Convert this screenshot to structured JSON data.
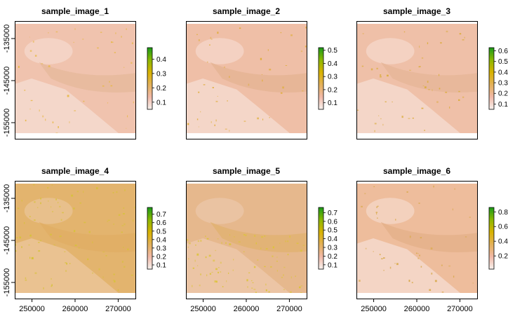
{
  "chart_data": [
    {
      "type": "heatmap",
      "title": "sample_image_1",
      "legend_ticks": [
        "0.1",
        "0.2",
        "0.3",
        "0.4"
      ],
      "legend_range": [
        0.05,
        0.48
      ],
      "y_ticks": [
        "-135000",
        "-145000",
        "-155000"
      ],
      "x_ticks": [],
      "fill": "#f0c3ae",
      "tint": "#e3b796",
      "speckle": "#e7b94a"
    },
    {
      "type": "heatmap",
      "title": "sample_image_2",
      "legend_ticks": [
        "0.1",
        "0.2",
        "0.3",
        "0.4",
        "0.5"
      ],
      "legend_range": [
        0.05,
        0.52
      ],
      "y_ticks": [],
      "x_ticks": [],
      "fill": "#efbfa7",
      "tint": "#e2b08f",
      "speckle": "#dfae3c"
    },
    {
      "type": "heatmap",
      "title": "sample_image_3",
      "legend_ticks": [
        "0.1",
        "0.2",
        "0.3",
        "0.4",
        "0.5",
        "0.6"
      ],
      "legend_range": [
        0.05,
        0.63
      ],
      "y_ticks": [],
      "x_ticks": [],
      "fill": "#efc0a8",
      "tint": "#e4b393",
      "speckle": "#dcae44"
    },
    {
      "type": "heatmap",
      "title": "sample_image_4",
      "legend_ticks": [
        "0.1",
        "0.2",
        "0.3",
        "0.4",
        "0.5",
        "0.6",
        "0.7"
      ],
      "legend_range": [
        0.05,
        0.78
      ],
      "y_ticks": [
        "-135000",
        "-145000",
        "-155000"
      ],
      "x_ticks": [
        "250000",
        "260000",
        "270000"
      ],
      "fill": "#e3b46e",
      "tint": "#e0ac63",
      "speckle": "#d7c23a"
    },
    {
      "type": "heatmap",
      "title": "sample_image_5",
      "legend_ticks": [
        "0.1",
        "0.2",
        "0.3",
        "0.4",
        "0.5",
        "0.6",
        "0.7"
      ],
      "legend_range": [
        0.05,
        0.76
      ],
      "y_ticks": [],
      "x_ticks": [
        "250000",
        "260000",
        "270000"
      ],
      "fill": "#e6b88d",
      "tint": "#e0b06a",
      "speckle": "#dcc43a"
    },
    {
      "type": "heatmap",
      "title": "sample_image_6",
      "legend_ticks": [
        "0.2",
        "0.4",
        "0.6",
        "0.8"
      ],
      "legend_range": [
        0.02,
        0.86
      ],
      "y_ticks": [],
      "x_ticks": [
        "250000",
        "260000",
        "270000"
      ],
      "fill": "#eebd9c",
      "tint": "#e2ad85",
      "speckle": "#d9ab50"
    }
  ],
  "colors": {
    "ramp": [
      "#f7f2ee",
      "#f1b9a8",
      "#e3b15a",
      "#d8b200",
      "#8cb800",
      "#1a9b1a"
    ],
    "frame": "#000000",
    "light_region": "#f6ddd3"
  }
}
